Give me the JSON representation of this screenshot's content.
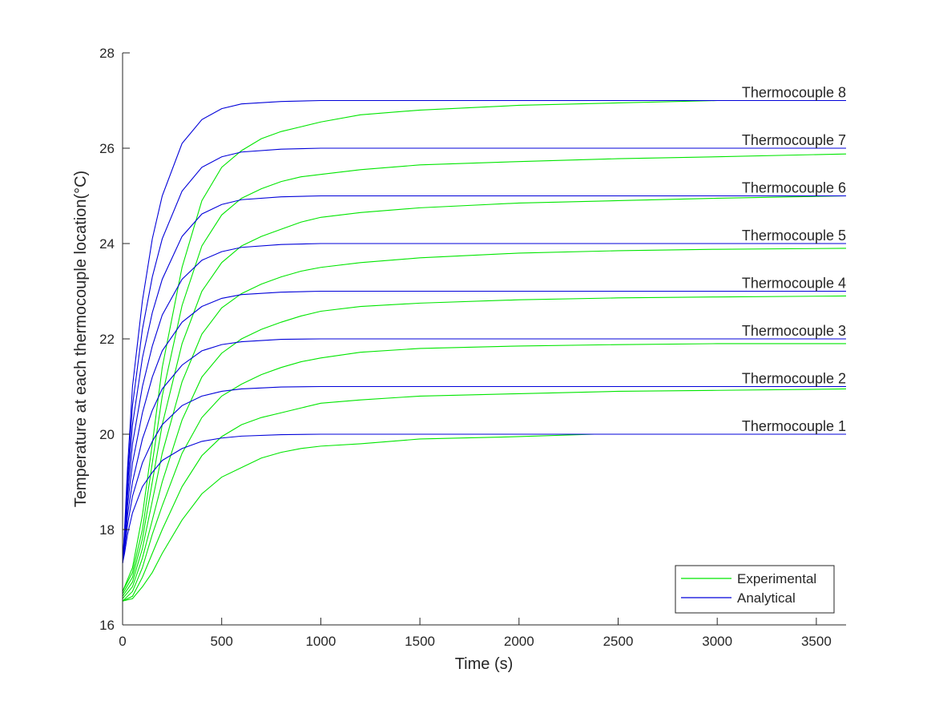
{
  "chart_data": {
    "type": "line",
    "title": "",
    "xlabel": "Time (s)",
    "ylabel": "Temperature at each thermocouple location(°C)",
    "xlim": [
      0,
      3650
    ],
    "ylim": [
      16,
      28
    ],
    "xticks": [
      0,
      500,
      1000,
      1500,
      2000,
      2500,
      3000,
      3500
    ],
    "yticks": [
      16,
      18,
      20,
      22,
      24,
      26,
      28
    ],
    "grid": false,
    "legend": {
      "position": "bottom-right",
      "entries": [
        {
          "label": "Experimental",
          "color": "#00e600"
        },
        {
          "label": "Analytical",
          "color": "#0000d9"
        }
      ]
    },
    "annotations": [
      {
        "text": "Thermocouple 1",
        "x": 3650,
        "y": 20
      },
      {
        "text": "Thermocouple 2",
        "x": 3650,
        "y": 21
      },
      {
        "text": "Thermocouple 3",
        "x": 3650,
        "y": 22
      },
      {
        "text": "Thermocouple 4",
        "x": 3650,
        "y": 23
      },
      {
        "text": "Thermocouple 5",
        "x": 3650,
        "y": 24
      },
      {
        "text": "Thermocouple 6",
        "x": 3650,
        "y": 25
      },
      {
        "text": "Thermocouple 7",
        "x": 3650,
        "y": 26
      },
      {
        "text": "Thermocouple 8",
        "x": 3650,
        "y": 27
      }
    ],
    "series": [
      {
        "group": "Analytical",
        "thermocouple": 1,
        "color": "#0000d9",
        "x": [
          0,
          10,
          25,
          50,
          100,
          150,
          200,
          300,
          400,
          500,
          600,
          800,
          1000,
          1500,
          2000,
          3000,
          3650
        ],
        "y": [
          17.3,
          17.5,
          17.9,
          18.35,
          18.9,
          19.2,
          19.45,
          19.7,
          19.85,
          19.92,
          19.96,
          19.99,
          20.0,
          20.0,
          20.0,
          20.0,
          20.0
        ]
      },
      {
        "group": "Analytical",
        "thermocouple": 2,
        "color": "#0000d9",
        "x": [
          0,
          10,
          25,
          50,
          100,
          150,
          200,
          300,
          400,
          500,
          600,
          800,
          1000,
          1500,
          2000,
          3000,
          3650
        ],
        "y": [
          17.3,
          17.6,
          18.1,
          18.7,
          19.4,
          19.85,
          20.2,
          20.6,
          20.8,
          20.9,
          20.95,
          20.99,
          21.0,
          21.0,
          21.0,
          21.0,
          21.0
        ]
      },
      {
        "group": "Analytical",
        "thermocouple": 3,
        "color": "#0000d9",
        "x": [
          0,
          10,
          25,
          50,
          100,
          150,
          200,
          300,
          400,
          500,
          600,
          800,
          1000,
          1500,
          2000,
          3000,
          3650
        ],
        "y": [
          17.3,
          17.65,
          18.3,
          19.0,
          19.9,
          20.5,
          20.95,
          21.45,
          21.75,
          21.88,
          21.94,
          21.99,
          22.0,
          22.0,
          22.0,
          22.0,
          22.0
        ]
      },
      {
        "group": "Analytical",
        "thermocouple": 4,
        "color": "#0000d9",
        "x": [
          0,
          10,
          25,
          50,
          100,
          150,
          200,
          300,
          400,
          500,
          600,
          800,
          1000,
          1500,
          2000,
          3000,
          3650
        ],
        "y": [
          17.3,
          17.7,
          18.5,
          19.4,
          20.45,
          21.2,
          21.75,
          22.35,
          22.68,
          22.85,
          22.93,
          22.98,
          23.0,
          23.0,
          23.0,
          23.0,
          23.0
        ]
      },
      {
        "group": "Analytical",
        "thermocouple": 5,
        "color": "#0000d9",
        "x": [
          0,
          10,
          25,
          50,
          100,
          150,
          200,
          300,
          400,
          500,
          600,
          800,
          1000,
          1500,
          2000,
          3000,
          3650
        ],
        "y": [
          17.3,
          17.8,
          18.7,
          19.8,
          21.0,
          21.85,
          22.5,
          23.25,
          23.65,
          23.83,
          23.92,
          23.98,
          24.0,
          24.0,
          24.0,
          24.0,
          24.0
        ]
      },
      {
        "group": "Analytical",
        "thermocouple": 6,
        "color": "#0000d9",
        "x": [
          0,
          10,
          25,
          50,
          100,
          150,
          200,
          300,
          400,
          500,
          600,
          800,
          1000,
          1500,
          2000,
          3000,
          3650
        ],
        "y": [
          17.3,
          17.85,
          18.9,
          20.2,
          21.6,
          22.55,
          23.25,
          24.15,
          24.62,
          24.82,
          24.92,
          24.98,
          25.0,
          25.0,
          25.0,
          25.0,
          25.0
        ]
      },
      {
        "group": "Analytical",
        "thermocouple": 7,
        "color": "#0000d9",
        "x": [
          0,
          10,
          25,
          50,
          100,
          150,
          200,
          300,
          400,
          500,
          600,
          800,
          1000,
          1500,
          2000,
          3000,
          3650
        ],
        "y": [
          17.3,
          17.95,
          19.1,
          20.6,
          22.2,
          23.3,
          24.1,
          25.1,
          25.6,
          25.82,
          25.92,
          25.98,
          26.0,
          26.0,
          26.0,
          26.0,
          26.0
        ]
      },
      {
        "group": "Analytical",
        "thermocouple": 8,
        "color": "#0000d9",
        "x": [
          0,
          10,
          25,
          50,
          100,
          150,
          200,
          300,
          400,
          500,
          600,
          800,
          1000,
          1500,
          2000,
          3000,
          3650
        ],
        "y": [
          17.3,
          18.0,
          19.3,
          21.0,
          22.8,
          24.1,
          25.0,
          26.1,
          26.6,
          26.83,
          26.93,
          26.98,
          27.0,
          27.0,
          27.0,
          27.0,
          27.0
        ]
      },
      {
        "group": "Experimental",
        "thermocouple": 1,
        "color": "#00e600",
        "x": [
          0,
          50,
          100,
          150,
          200,
          300,
          400,
          500,
          600,
          700,
          800,
          900,
          1000,
          1200,
          1500,
          2000,
          2380,
          2500,
          3000,
          3650
        ],
        "y": [
          16.5,
          16.55,
          16.8,
          17.1,
          17.5,
          18.2,
          18.75,
          19.1,
          19.3,
          19.5,
          19.62,
          19.7,
          19.75,
          19.8,
          19.9,
          19.95,
          20.0,
          20.0,
          20.0,
          20.0
        ]
      },
      {
        "group": "Experimental",
        "thermocouple": 2,
        "color": "#00e600",
        "x": [
          0,
          50,
          100,
          150,
          200,
          300,
          400,
          500,
          600,
          700,
          800,
          900,
          1000,
          1200,
          1500,
          2000,
          2500,
          3000,
          3650
        ],
        "y": [
          16.5,
          16.6,
          17.0,
          17.5,
          18.0,
          18.9,
          19.55,
          19.95,
          20.2,
          20.35,
          20.45,
          20.55,
          20.65,
          20.72,
          20.8,
          20.85,
          20.9,
          20.92,
          20.95
        ]
      },
      {
        "group": "Experimental",
        "thermocouple": 3,
        "color": "#00e600",
        "x": [
          0,
          50,
          100,
          150,
          200,
          300,
          400,
          500,
          600,
          700,
          800,
          900,
          1000,
          1200,
          1500,
          2000,
          2500,
          3000,
          3650
        ],
        "y": [
          16.5,
          16.7,
          17.2,
          17.9,
          18.5,
          19.6,
          20.35,
          20.8,
          21.05,
          21.25,
          21.4,
          21.52,
          21.6,
          21.72,
          21.8,
          21.85,
          21.88,
          21.9,
          21.9
        ]
      },
      {
        "group": "Experimental",
        "thermocouple": 4,
        "color": "#00e600",
        "x": [
          0,
          50,
          100,
          150,
          200,
          300,
          400,
          500,
          600,
          700,
          800,
          900,
          1000,
          1200,
          1500,
          2000,
          2500,
          3000,
          3650
        ],
        "y": [
          16.55,
          16.8,
          17.4,
          18.2,
          19.0,
          20.3,
          21.2,
          21.7,
          22.0,
          22.2,
          22.35,
          22.48,
          22.58,
          22.68,
          22.75,
          22.82,
          22.86,
          22.88,
          22.9
        ]
      },
      {
        "group": "Experimental",
        "thermocouple": 5,
        "color": "#00e600",
        "x": [
          0,
          50,
          100,
          150,
          200,
          300,
          400,
          500,
          600,
          700,
          800,
          900,
          1000,
          1200,
          1500,
          2000,
          2500,
          3000,
          3650
        ],
        "y": [
          16.6,
          16.9,
          17.6,
          18.6,
          19.6,
          21.1,
          22.1,
          22.65,
          22.95,
          23.15,
          23.3,
          23.42,
          23.5,
          23.6,
          23.7,
          23.8,
          23.85,
          23.88,
          23.9
        ]
      },
      {
        "group": "Experimental",
        "thermocouple": 6,
        "color": "#00e600",
        "x": [
          0,
          50,
          100,
          150,
          200,
          300,
          400,
          500,
          600,
          700,
          800,
          900,
          1000,
          1200,
          1500,
          2000,
          2500,
          3000,
          3650
        ],
        "y": [
          16.65,
          17.0,
          17.8,
          19.0,
          20.2,
          21.9,
          23.0,
          23.6,
          23.95,
          24.15,
          24.3,
          24.45,
          24.55,
          24.65,
          24.75,
          24.85,
          24.9,
          24.95,
          25.0
        ]
      },
      {
        "group": "Experimental",
        "thermocouple": 7,
        "color": "#00e600",
        "x": [
          0,
          50,
          100,
          150,
          200,
          300,
          400,
          500,
          600,
          700,
          800,
          900,
          1000,
          1200,
          1500,
          2000,
          2500,
          3000,
          3650
        ],
        "y": [
          16.7,
          17.1,
          18.0,
          19.4,
          20.8,
          22.7,
          23.95,
          24.6,
          24.95,
          25.15,
          25.3,
          25.4,
          25.45,
          25.55,
          25.65,
          25.72,
          25.78,
          25.82,
          25.88
        ]
      },
      {
        "group": "Experimental",
        "thermocouple": 8,
        "color": "#00e600",
        "x": [
          0,
          50,
          100,
          150,
          200,
          300,
          400,
          500,
          600,
          700,
          800,
          900,
          1000,
          1200,
          1500,
          2000,
          2500,
          3000,
          3650
        ],
        "y": [
          16.7,
          17.2,
          18.3,
          19.8,
          21.4,
          23.5,
          24.9,
          25.6,
          25.95,
          26.2,
          26.35,
          26.45,
          26.55,
          26.7,
          26.8,
          26.9,
          26.95,
          27.0,
          27.0
        ]
      }
    ]
  }
}
